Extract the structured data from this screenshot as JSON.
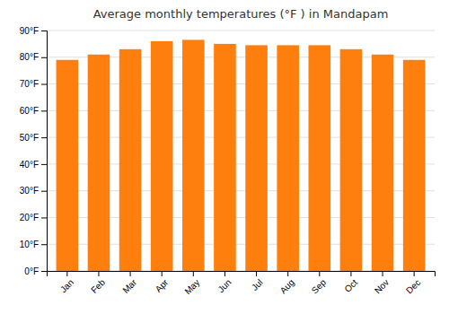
{
  "chart_data": {
    "type": "bar",
    "title": "Average monthly temperatures (°F ) in Mandapam",
    "categories": [
      "Jan",
      "Feb",
      "Mar",
      "Apr",
      "May",
      "Jun",
      "Jul",
      "Aug",
      "Sep",
      "Oct",
      "Nov",
      "Dec"
    ],
    "values": [
      79,
      81,
      83,
      86,
      86.5,
      85,
      84.5,
      84.5,
      84.5,
      83,
      81,
      79
    ],
    "ylim": [
      0,
      90
    ],
    "yticks": [
      {
        "value": 0,
        "label": "0°F"
      },
      {
        "value": 10,
        "label": "10°F"
      },
      {
        "value": 20,
        "label": "20°F"
      },
      {
        "value": 30,
        "label": "30°F"
      },
      {
        "value": 40,
        "label": "40°F"
      },
      {
        "value": 50,
        "label": "50°F"
      },
      {
        "value": 60,
        "label": "60°F"
      },
      {
        "value": 70,
        "label": "70°F"
      },
      {
        "value": 80,
        "label": "80°F"
      },
      {
        "value": 90,
        "label": "90°F"
      }
    ],
    "grid": true
  }
}
